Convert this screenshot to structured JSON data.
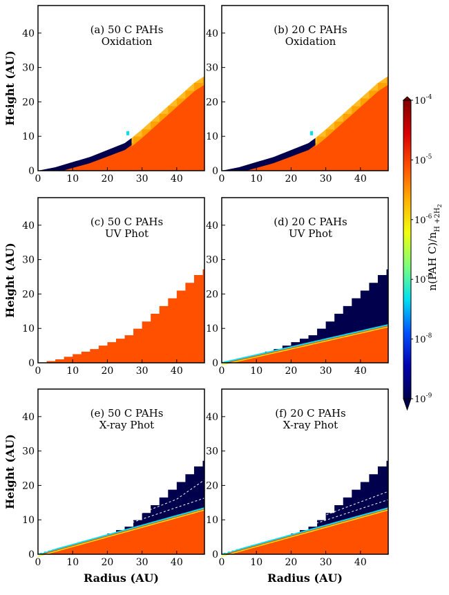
{
  "chart_data": {
    "type": "heatmap",
    "description_units": {
      "x": "AU",
      "y": "AU"
    },
    "xlabel": "Radius (AU)",
    "ylabel": "Height (AU)",
    "xlim": [
      0,
      48
    ],
    "ylim": [
      0,
      48
    ],
    "xticks": [
      0,
      10,
      20,
      30,
      40
    ],
    "yticks": [
      0,
      10,
      20,
      30,
      40
    ],
    "colorbar": {
      "label": "n(PAH C)/n_{H+2H2}",
      "label_main": "n(PAH C)/n",
      "label_sub": "H +2H",
      "label_sub2": "2",
      "scale": "log",
      "range": [
        1e-09,
        0.0001
      ],
      "tick_exponents": [
        "-9",
        "-8",
        "-7",
        "-6",
        "-5",
        "-4"
      ],
      "tick_base": "10",
      "colors": [
        "#00004c",
        "#0000b0",
        "#0050ff",
        "#00e0f0",
        "#7cff7a",
        "#f0ff10",
        "#ffb000",
        "#ff5000",
        "#d80000",
        "#7f0000"
      ]
    },
    "disk_surface_height_AU": [
      [
        0,
        0
      ],
      [
        5,
        1
      ],
      [
        10,
        2.5
      ],
      [
        15,
        4
      ],
      [
        20,
        6
      ],
      [
        25,
        8
      ],
      [
        27,
        9.5
      ],
      [
        30,
        12
      ],
      [
        35,
        16.5
      ],
      [
        40,
        21
      ],
      [
        45,
        25.5
      ],
      [
        48,
        27.5
      ]
    ],
    "panels": [
      {
        "id": "a",
        "title1": "(a) 50 C PAHs",
        "title2": "Oxidation",
        "midplane_value": 1.5e-05,
        "surface_value": "depleted to 1e-9 below 25 AU",
        "dashed_contours": false
      },
      {
        "id": "b",
        "title1": "(b) 20 C PAHs",
        "title2": "Oxidation",
        "midplane_value": 1.5e-05,
        "surface_value": "depleted to 1e-9 below 25 AU",
        "dashed_contours": false
      },
      {
        "id": "c",
        "title1": "(c) 50 C PAHs",
        "title2": "UV Phot",
        "midplane_value": 1.5e-05,
        "surface_value": "1.5e-5 everywhere",
        "dashed_contours": false
      },
      {
        "id": "d",
        "title1": "(d) 20 C PAHs",
        "title2": "UV Phot",
        "midplane_value": 1.5e-05,
        "surface_value": "1e-9 above ~0.25 z/r",
        "dashed_contours": false
      },
      {
        "id": "e",
        "title1": "(e) 50 C PAHs",
        "title2": "X-ray Phot",
        "midplane_value": 1.5e-05,
        "surface_value": "1e-9 above ~0.3 z/r",
        "dashed_contours": true
      },
      {
        "id": "f",
        "title1": "(f) 20 C PAHs",
        "title2": "X-ray Phot",
        "midplane_value": 1.5e-05,
        "surface_value": "1e-9 above ~0.3 z/r",
        "dashed_contours": true
      }
    ]
  }
}
